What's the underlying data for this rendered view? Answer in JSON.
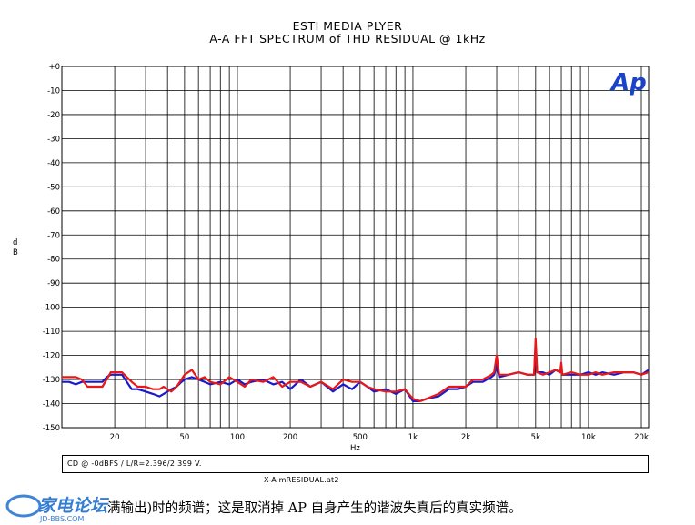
{
  "header": {
    "title": "ESTI MEDIA PLYER",
    "subtitle": "A-A FFT SPECTRUM of THD RESIDUAL  @ 1kHz"
  },
  "logo": {
    "text": "Ap",
    "color": "#1b43c9"
  },
  "note": {
    "text": "CD @ -0dBFS / L/R=2.396/2.399 V."
  },
  "file": {
    "text": "X-A mRESIDUAL.at2"
  },
  "caption": {
    "text": "满输出)时的频谱；这是取消掉 AP 自身产生的谐波失真后的真实频谱。"
  },
  "watermark": {
    "text": "家电论坛",
    "url_text": "JD-BBS.COM",
    "color": "#1f6fd0"
  },
  "chart_data": {
    "type": "line",
    "title": "ESTI MEDIA PLYER",
    "subtitle": "A-A FFT SPECTRUM of THD RESIDUAL  @ 1kHz",
    "xlabel": "Hz",
    "ylabel": "d B",
    "x_scale": "log",
    "xlim": [
      10,
      22000
    ],
    "ylim": [
      -150,
      0
    ],
    "grid": true,
    "x_ticks": [
      {
        "value": 20,
        "label": "20"
      },
      {
        "value": 50,
        "label": "50"
      },
      {
        "value": 100,
        "label": "100"
      },
      {
        "value": 200,
        "label": "200"
      },
      {
        "value": 500,
        "label": "500"
      },
      {
        "value": 1000,
        "label": "1k"
      },
      {
        "value": 2000,
        "label": "2k"
      },
      {
        "value": 5000,
        "label": "5k"
      },
      {
        "value": 10000,
        "label": "10k"
      },
      {
        "value": 20000,
        "label": "20k"
      }
    ],
    "y_ticks": [
      {
        "value": 0,
        "label": "+0"
      },
      {
        "value": -10,
        "label": "-10"
      },
      {
        "value": -20,
        "label": "-20"
      },
      {
        "value": -30,
        "label": "-30"
      },
      {
        "value": -40,
        "label": "-40"
      },
      {
        "value": -50,
        "label": "-50"
      },
      {
        "value": -60,
        "label": "-60"
      },
      {
        "value": -70,
        "label": "-70"
      },
      {
        "value": -80,
        "label": "-80"
      },
      {
        "value": -90,
        "label": "-90"
      },
      {
        "value": -100,
        "label": "-100"
      },
      {
        "value": -110,
        "label": "-110"
      },
      {
        "value": -120,
        "label": "-120"
      },
      {
        "value": -130,
        "label": "-130"
      },
      {
        "value": -140,
        "label": "-140"
      },
      {
        "value": -150,
        "label": "-150"
      }
    ],
    "series": [
      {
        "color": "#1a1acc",
        "x": [
          10,
          11,
          12,
          13,
          14,
          15,
          17,
          18,
          19,
          20,
          22,
          25,
          27,
          30,
          33,
          36,
          38,
          42,
          45,
          48,
          50,
          55,
          60,
          65,
          70,
          80,
          90,
          100,
          110,
          120,
          140,
          160,
          180,
          200,
          230,
          260,
          300,
          350,
          400,
          450,
          500,
          550,
          600,
          700,
          800,
          900,
          1000,
          1100,
          1200,
          1400,
          1600,
          1800,
          2000,
          2200,
          2500,
          2800,
          2900,
          3000,
          3100,
          3500,
          4000,
          4500,
          4900,
          5000,
          5100,
          5500,
          6000,
          6500,
          6900,
          7000,
          7100,
          8000,
          9000,
          10000,
          11000,
          12000,
          14000,
          16000,
          18000,
          20000,
          22000
        ],
        "y": [
          -131,
          -131,
          -132,
          -131,
          -131,
          -131,
          -131,
          -129,
          -128,
          -128,
          -128,
          -134,
          -134,
          -135,
          -136,
          -137,
          -136,
          -134,
          -133,
          -131,
          -130,
          -129,
          -130,
          -131,
          -132,
          -131,
          -132,
          -130,
          -132,
          -131,
          -130,
          -132,
          -131,
          -134,
          -130,
          -133,
          -131,
          -135,
          -132,
          -134,
          -131,
          -133,
          -135,
          -134,
          -136,
          -134,
          -139,
          -139,
          -138,
          -137,
          -134,
          -134,
          -133,
          -131,
          -131,
          -129,
          -128,
          -124,
          -129,
          -128,
          -127,
          -128,
          -128,
          -117,
          -127,
          -127,
          -128,
          -126,
          -127,
          -125,
          -128,
          -128,
          -128,
          -127,
          -128,
          -127,
          -128,
          -127,
          -127,
          -128,
          -126
        ]
      },
      {
        "color": "#e81818",
        "x": [
          10,
          11,
          12,
          13,
          14,
          15,
          16,
          17,
          18,
          19,
          20,
          22,
          25,
          27,
          30,
          33,
          36,
          38,
          42,
          45,
          48,
          50,
          55,
          60,
          65,
          70,
          80,
          90,
          100,
          110,
          120,
          140,
          160,
          180,
          200,
          230,
          260,
          300,
          350,
          400,
          450,
          500,
          550,
          600,
          700,
          800,
          900,
          1000,
          1100,
          1200,
          1400,
          1600,
          1800,
          2000,
          2200,
          2500,
          2800,
          2900,
          3000,
          3100,
          3500,
          4000,
          4500,
          4900,
          5000,
          5100,
          5500,
          6000,
          6500,
          6900,
          7000,
          7100,
          8000,
          9000,
          10000,
          11000,
          12000,
          14000,
          16000,
          18000,
          20000,
          22000
        ],
        "y": [
          -129,
          -129,
          -129,
          -130,
          -133,
          -133,
          -133,
          -133,
          -130,
          -127,
          -127,
          -127,
          -131,
          -133,
          -133,
          -134,
          -134,
          -133,
          -135,
          -133,
          -130,
          -128,
          -126,
          -130,
          -129,
          -131,
          -132,
          -129,
          -131,
          -133,
          -130,
          -131,
          -129,
          -133,
          -131,
          -131,
          -133,
          -131,
          -134,
          -130,
          -131,
          -131,
          -133,
          -134,
          -135,
          -135,
          -134,
          -138,
          -139,
          -138,
          -136,
          -133,
          -133,
          -133,
          -130,
          -130,
          -128,
          -127,
          -120,
          -128,
          -128,
          -127,
          -128,
          -128,
          -113,
          -127,
          -128,
          -127,
          -126,
          -127,
          -123,
          -128,
          -127,
          -128,
          -128,
          -127,
          -128,
          -127,
          -127,
          -127,
          -128,
          -127
        ]
      }
    ]
  }
}
